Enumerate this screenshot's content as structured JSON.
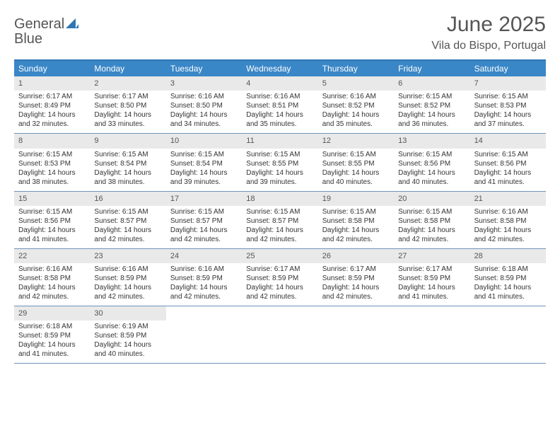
{
  "brand": {
    "word1": "General",
    "word2": "Blue"
  },
  "title": "June 2025",
  "location": "Vila do Bispo, Portugal",
  "colors": {
    "header_bg": "#3a87c7",
    "header_text": "#ffffff",
    "border_top": "#2f76b5",
    "week_border": "#6e95b9",
    "daynum_bg": "#e9e9e9",
    "body_text": "#333333",
    "title_text": "#555555"
  },
  "typography": {
    "title_fontsize": 30,
    "location_fontsize": 16,
    "dayheader_fontsize": 12,
    "daynum_fontsize": 11,
    "cell_fontsize": 10
  },
  "day_names": [
    "Sunday",
    "Monday",
    "Tuesday",
    "Wednesday",
    "Thursday",
    "Friday",
    "Saturday"
  ],
  "weeks": [
    [
      {
        "n": "1",
        "sr": "Sunrise: 6:17 AM",
        "ss": "Sunset: 8:49 PM",
        "dl": "Daylight: 14 hours and 32 minutes."
      },
      {
        "n": "2",
        "sr": "Sunrise: 6:17 AM",
        "ss": "Sunset: 8:50 PM",
        "dl": "Daylight: 14 hours and 33 minutes."
      },
      {
        "n": "3",
        "sr": "Sunrise: 6:16 AM",
        "ss": "Sunset: 8:50 PM",
        "dl": "Daylight: 14 hours and 34 minutes."
      },
      {
        "n": "4",
        "sr": "Sunrise: 6:16 AM",
        "ss": "Sunset: 8:51 PM",
        "dl": "Daylight: 14 hours and 35 minutes."
      },
      {
        "n": "5",
        "sr": "Sunrise: 6:16 AM",
        "ss": "Sunset: 8:52 PM",
        "dl": "Daylight: 14 hours and 35 minutes."
      },
      {
        "n": "6",
        "sr": "Sunrise: 6:15 AM",
        "ss": "Sunset: 8:52 PM",
        "dl": "Daylight: 14 hours and 36 minutes."
      },
      {
        "n": "7",
        "sr": "Sunrise: 6:15 AM",
        "ss": "Sunset: 8:53 PM",
        "dl": "Daylight: 14 hours and 37 minutes."
      }
    ],
    [
      {
        "n": "8",
        "sr": "Sunrise: 6:15 AM",
        "ss": "Sunset: 8:53 PM",
        "dl": "Daylight: 14 hours and 38 minutes."
      },
      {
        "n": "9",
        "sr": "Sunrise: 6:15 AM",
        "ss": "Sunset: 8:54 PM",
        "dl": "Daylight: 14 hours and 38 minutes."
      },
      {
        "n": "10",
        "sr": "Sunrise: 6:15 AM",
        "ss": "Sunset: 8:54 PM",
        "dl": "Daylight: 14 hours and 39 minutes."
      },
      {
        "n": "11",
        "sr": "Sunrise: 6:15 AM",
        "ss": "Sunset: 8:55 PM",
        "dl": "Daylight: 14 hours and 39 minutes."
      },
      {
        "n": "12",
        "sr": "Sunrise: 6:15 AM",
        "ss": "Sunset: 8:55 PM",
        "dl": "Daylight: 14 hours and 40 minutes."
      },
      {
        "n": "13",
        "sr": "Sunrise: 6:15 AM",
        "ss": "Sunset: 8:56 PM",
        "dl": "Daylight: 14 hours and 40 minutes."
      },
      {
        "n": "14",
        "sr": "Sunrise: 6:15 AM",
        "ss": "Sunset: 8:56 PM",
        "dl": "Daylight: 14 hours and 41 minutes."
      }
    ],
    [
      {
        "n": "15",
        "sr": "Sunrise: 6:15 AM",
        "ss": "Sunset: 8:56 PM",
        "dl": "Daylight: 14 hours and 41 minutes."
      },
      {
        "n": "16",
        "sr": "Sunrise: 6:15 AM",
        "ss": "Sunset: 8:57 PM",
        "dl": "Daylight: 14 hours and 42 minutes."
      },
      {
        "n": "17",
        "sr": "Sunrise: 6:15 AM",
        "ss": "Sunset: 8:57 PM",
        "dl": "Daylight: 14 hours and 42 minutes."
      },
      {
        "n": "18",
        "sr": "Sunrise: 6:15 AM",
        "ss": "Sunset: 8:57 PM",
        "dl": "Daylight: 14 hours and 42 minutes."
      },
      {
        "n": "19",
        "sr": "Sunrise: 6:15 AM",
        "ss": "Sunset: 8:58 PM",
        "dl": "Daylight: 14 hours and 42 minutes."
      },
      {
        "n": "20",
        "sr": "Sunrise: 6:15 AM",
        "ss": "Sunset: 8:58 PM",
        "dl": "Daylight: 14 hours and 42 minutes."
      },
      {
        "n": "21",
        "sr": "Sunrise: 6:16 AM",
        "ss": "Sunset: 8:58 PM",
        "dl": "Daylight: 14 hours and 42 minutes."
      }
    ],
    [
      {
        "n": "22",
        "sr": "Sunrise: 6:16 AM",
        "ss": "Sunset: 8:58 PM",
        "dl": "Daylight: 14 hours and 42 minutes."
      },
      {
        "n": "23",
        "sr": "Sunrise: 6:16 AM",
        "ss": "Sunset: 8:59 PM",
        "dl": "Daylight: 14 hours and 42 minutes."
      },
      {
        "n": "24",
        "sr": "Sunrise: 6:16 AM",
        "ss": "Sunset: 8:59 PM",
        "dl": "Daylight: 14 hours and 42 minutes."
      },
      {
        "n": "25",
        "sr": "Sunrise: 6:17 AM",
        "ss": "Sunset: 8:59 PM",
        "dl": "Daylight: 14 hours and 42 minutes."
      },
      {
        "n": "26",
        "sr": "Sunrise: 6:17 AM",
        "ss": "Sunset: 8:59 PM",
        "dl": "Daylight: 14 hours and 42 minutes."
      },
      {
        "n": "27",
        "sr": "Sunrise: 6:17 AM",
        "ss": "Sunset: 8:59 PM",
        "dl": "Daylight: 14 hours and 41 minutes."
      },
      {
        "n": "28",
        "sr": "Sunrise: 6:18 AM",
        "ss": "Sunset: 8:59 PM",
        "dl": "Daylight: 14 hours and 41 minutes."
      }
    ],
    [
      {
        "n": "29",
        "sr": "Sunrise: 6:18 AM",
        "ss": "Sunset: 8:59 PM",
        "dl": "Daylight: 14 hours and 41 minutes."
      },
      {
        "n": "30",
        "sr": "Sunrise: 6:19 AM",
        "ss": "Sunset: 8:59 PM",
        "dl": "Daylight: 14 hours and 40 minutes."
      },
      null,
      null,
      null,
      null,
      null
    ]
  ]
}
